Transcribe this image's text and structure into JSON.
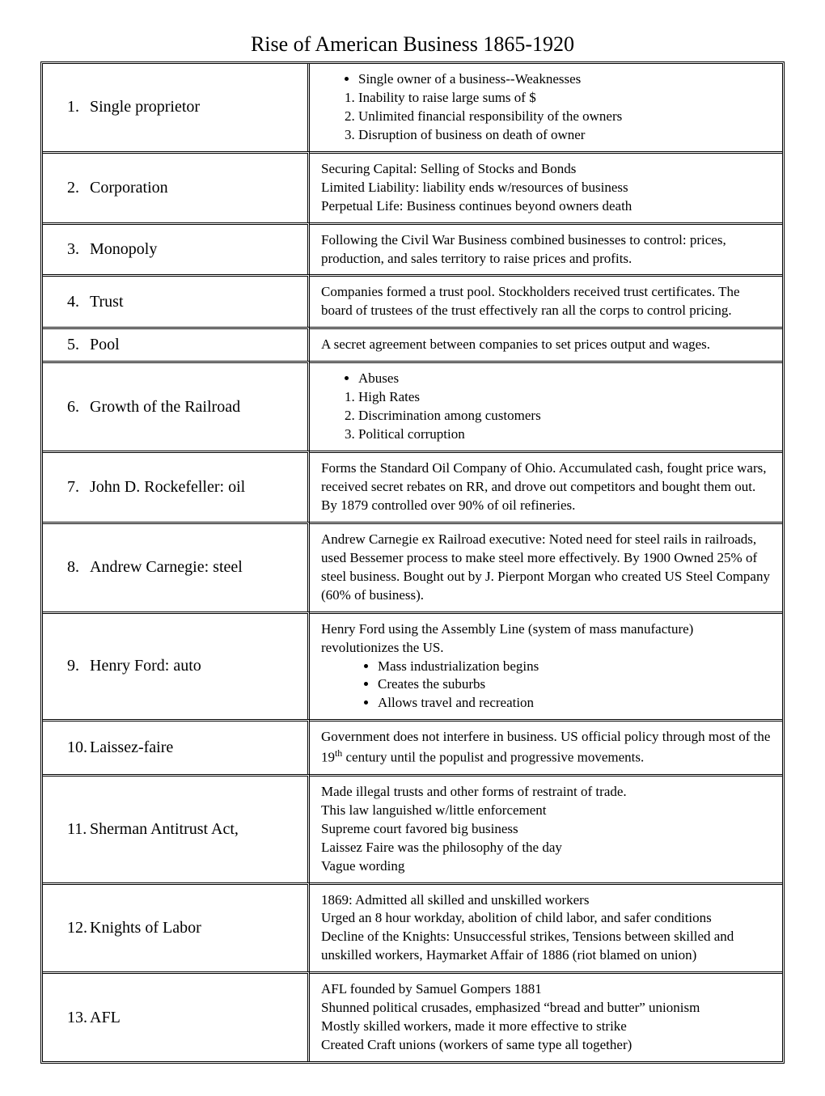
{
  "title": "Rise of American Business 1865-1920",
  "terms": {
    "r1": "Single proprietor",
    "r2": "Corporation",
    "r3": "Monopoly",
    "r4": "Trust",
    "r5": "Pool",
    "r6": "Growth of the Railroad",
    "r7": "John D. Rockefeller: oil",
    "r8": "Andrew Carnegie: steel",
    "r9": "Henry Ford: auto",
    "r10": "Laissez-faire",
    "r11": "Sherman Antitrust Act,",
    "r12": "Knights of Labor",
    "r13": "AFL"
  },
  "nums": {
    "r1": "1.",
    "r2": "2.",
    "r3": "3.",
    "r4": "4.",
    "r5": "5.",
    "r6": "6.",
    "r7": "7.",
    "r8": "8.",
    "r9": "9.",
    "r10": "10.",
    "r11": "11.",
    "r12": "12.",
    "r13": "13."
  },
  "defs": {
    "r1": {
      "bullet": "Single owner of a business--Weaknesses",
      "items": [
        "Inability to raise large sums of $",
        "Unlimited financial responsibility of the owners",
        "Disruption of business on death of owner"
      ]
    },
    "r2": {
      "lines": [
        "Securing Capital:  Selling of Stocks and Bonds",
        "Limited Liability:   liability ends w/resources of business",
        "Perpetual Life: Business continues beyond owners death"
      ]
    },
    "r3": {
      "text": "Following the Civil War Business combined businesses to control: prices, production, and sales territory to raise prices and profits."
    },
    "r4": {
      "text": "Companies formed a trust pool. Stockholders received trust certificates. The board of trustees of the trust effectively ran all the corps to control pricing."
    },
    "r5": {
      "text": "A secret agreement between companies to set prices output and wages."
    },
    "r6": {
      "bullet": "Abuses",
      "items": [
        "High Rates",
        "Discrimination among customers",
        "Political corruption"
      ]
    },
    "r7": {
      "text": "Forms the Standard Oil Company of Ohio.  Accumulated cash, fought price wars, received secret rebates on RR, and drove out competitors and bought them out.  By 1879 controlled over 90% of oil refineries."
    },
    "r8": {
      "text": "Andrew Carnegie ex Railroad executive:  Noted need for steel rails in railroads, used Bessemer process to make steel more effectively.  By 1900 Owned 25% of steel business. Bought out by J. Pierpont Morgan who created US Steel Company (60% of business)."
    },
    "r9": {
      "intro": "Henry Ford using the Assembly Line (system of mass manufacture) revolutionizes the US.",
      "bullets": [
        "Mass industrialization begins",
        "Creates the suburbs",
        "Allows travel and recreation"
      ]
    },
    "r10": {
      "pre": "Government does not interfere in business.  US official policy through most of the 19",
      "sup": "th",
      "post": " century until the populist and progressive movements."
    },
    "r11": {
      "lines": [
        "Made illegal trusts and other forms of restraint of trade.",
        "This law languished w/little enforcement",
        "Supreme court favored big business",
        "Laissez Faire was the philosophy of the day",
        "Vague wording"
      ]
    },
    "r12": {
      "lines": [
        "1869: Admitted all skilled and unskilled workers",
        "Urged an 8 hour workday, abolition of child labor, and safer conditions",
        "Decline of the Knights: Unsuccessful strikes, Tensions between skilled and unskilled workers, Haymarket Affair of 1886 (riot blamed on union)"
      ]
    },
    "r13": {
      "lines": [
        "AFL founded by Samuel Gompers 1881",
        "Shunned political crusades, emphasized “bread and butter” unionism",
        "Mostly skilled workers, made it more effective to strike",
        "Created Craft unions (workers of same type all together)"
      ]
    }
  }
}
